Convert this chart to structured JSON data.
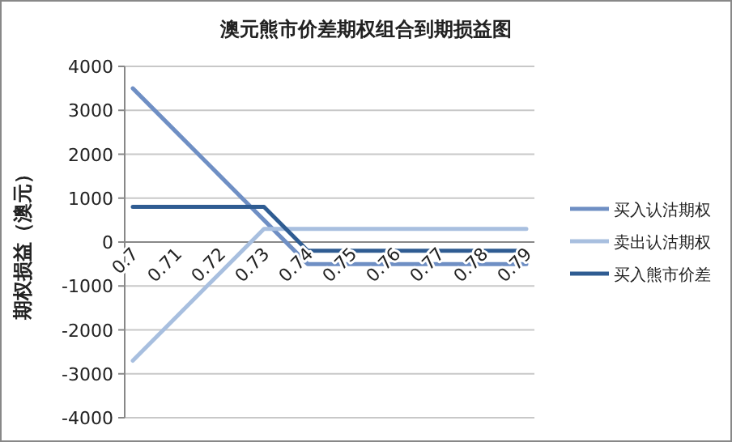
{
  "chart_data": {
    "type": "line",
    "title": "澳元熊市价差期权组合到期损益图",
    "ylabel": "期权损益（澳元）",
    "categories": [
      "0.7",
      "0.71",
      "0.72",
      "0.73",
      "0.74",
      "0.75",
      "0.76",
      "0.77",
      "0.78",
      "0.79"
    ],
    "series": [
      {
        "name": "买入认沽期权",
        "color": "#6f8fc4",
        "values": [
          3500,
          2500,
          1500,
          500,
          -500,
          -500,
          -500,
          -500,
          -500,
          -500
        ]
      },
      {
        "name": "卖出认沽期权",
        "color": "#a8bfdf",
        "values": [
          -2700,
          -1700,
          -700,
          300,
          300,
          300,
          300,
          300,
          300,
          300
        ]
      },
      {
        "name": "买入熊市价差",
        "color": "#2f5c92",
        "values": [
          800,
          800,
          800,
          800,
          -200,
          -200,
          -200,
          -200,
          -200,
          -200
        ]
      }
    ],
    "ylim": [
      -4000,
      4000
    ],
    "yticks": [
      -4000,
      -3000,
      -2000,
      -1000,
      0,
      1000,
      2000,
      3000,
      4000
    ],
    "grid": "y",
    "legend": "right"
  }
}
